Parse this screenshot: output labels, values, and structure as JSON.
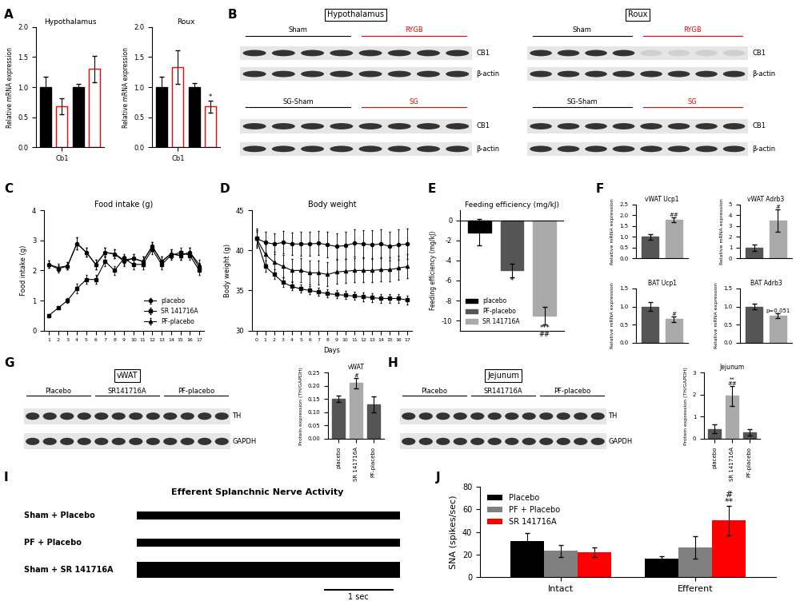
{
  "panel_labels": [
    "A",
    "B",
    "C",
    "D",
    "E",
    "F",
    "G",
    "H",
    "I",
    "J"
  ],
  "chart_data": [
    {
      "type": "bar",
      "title": "Hypothalamus",
      "ylabel": "Relative mRNA expression",
      "categories": [
        null,
        "Cb1",
        null,
        null
      ],
      "values": [
        1.0,
        0.68,
        1.0,
        1.3
      ],
      "errors": [
        0.17,
        0.13,
        0.06,
        0.22
      ],
      "colors": [
        "#000000",
        "#ff0000",
        "#000000",
        "#ff0000"
      ],
      "annotations": [
        null,
        null,
        null,
        null
      ],
      "ylim": [
        0,
        2
      ],
      "yticks": [
        {
          "value": 0,
          "label": "0.0"
        },
        {
          "value": 0.5,
          "label": "0.5"
        },
        {
          "value": 1,
          "label": "1.0"
        },
        {
          "value": 1.5,
          "label": "1.5"
        },
        {
          "value": 2,
          "label": "2.0"
        }
      ]
    },
    {
      "type": "bar",
      "title": "Roux",
      "ylabel": "Relative mRNA expression",
      "categories": [
        null,
        "Cb1",
        null,
        null
      ],
      "values": [
        1.0,
        1.33,
        1.0,
        0.68
      ],
      "errors": [
        0.17,
        0.28,
        0.07,
        0.1
      ],
      "colors": [
        "#000000",
        "#ff0000",
        "#000000",
        "#ff0000"
      ],
      "annotations": [
        null,
        null,
        null,
        "*"
      ],
      "ylim": [
        0,
        2
      ],
      "yticks": [
        {
          "value": 0,
          "label": "0.0"
        },
        {
          "value": 0.5,
          "label": "0.5"
        },
        {
          "value": 1,
          "label": "1.0"
        },
        {
          "value": 1.5,
          "label": "1.5"
        },
        {
          "value": 2,
          "label": "2.0"
        }
      ]
    },
    {
      "type": "line",
      "title": "Food intake (g)",
      "ylabel": "Food intake (g)",
      "x": [
        1,
        2,
        3,
        4,
        5,
        6,
        7,
        8,
        9,
        10,
        11,
        12,
        13,
        14,
        15,
        16,
        17
      ],
      "series": [
        {
          "name": "placebo",
          "color": "#000000",
          "marker": "circle",
          "values": [
            2.2,
            2.05,
            2.15,
            2.9,
            2.6,
            2.2,
            2.6,
            2.55,
            2.3,
            2.4,
            2.3,
            2.8,
            2.3,
            2.55,
            2.5,
            2.6,
            2.1
          ],
          "errors": [
            0.12,
            0.12,
            0.12,
            0.2,
            0.15,
            0.15,
            0.15,
            0.15,
            0.15,
            0.15,
            0.15,
            0.15,
            0.15,
            0.15,
            0.15,
            0.15,
            0.15
          ]
        },
        {
          "name": "SR 141716A",
          "color": "#000000",
          "marker": "square",
          "values": [
            0.5,
            0.75,
            1.0,
            1.4,
            1.7,
            1.7,
            2.3,
            2.0,
            2.4,
            2.2,
            2.2,
            2.7,
            2.2,
            2.5,
            2.6,
            2.5,
            2.0
          ],
          "errors": [
            0.05,
            0.05,
            0.08,
            0.15,
            0.15,
            0.15,
            0.15,
            0.15,
            0.15,
            0.15,
            0.15,
            0.15,
            0.15,
            0.15,
            0.15,
            0.15,
            0.15
          ]
        },
        {
          "name": "PF-placebo",
          "color": "#000000",
          "marker": "triangle",
          "values": [
            2.2,
            2.1,
            2.15,
            2.9,
            2.6,
            2.2,
            2.6,
            2.55,
            2.35,
            2.4,
            2.3,
            2.8,
            2.3,
            2.55,
            2.5,
            2.6,
            2.2
          ],
          "errors": [
            0.12,
            0.12,
            0.12,
            0.2,
            0.15,
            0.15,
            0.15,
            0.15,
            0.15,
            0.15,
            0.15,
            0.15,
            0.15,
            0.15,
            0.15,
            0.15,
            0.15
          ]
        }
      ],
      "xlim": [
        0.5,
        17.5
      ],
      "xticks": [
        1,
        2,
        3,
        4,
        5,
        6,
        7,
        8,
        9,
        10,
        11,
        12,
        13,
        14,
        15,
        16,
        17
      ],
      "ylim": [
        0,
        4
      ],
      "yticks": [
        0,
        1,
        2,
        3,
        4
      ],
      "legend": "lower right"
    },
    {
      "type": "line",
      "title": "Body weight",
      "ylabel": "Body weight (g)",
      "xlabel": "Days",
      "x": [
        0,
        1,
        2,
        3,
        4,
        5,
        6,
        7,
        8,
        9,
        10,
        11,
        12,
        13,
        14,
        15,
        16,
        17
      ],
      "series": [
        {
          "name": "placebo",
          "color": "#000000",
          "marker": "circle",
          "values": [
            41.5,
            41,
            40.8,
            41,
            40.8,
            40.8,
            40.8,
            40.9,
            40.7,
            40.5,
            40.6,
            40.9,
            40.8,
            40.7,
            40.8,
            40.5,
            40.7,
            40.8
          ],
          "errors": [
            1.2,
            1.3,
            1.3,
            1.4,
            1.4,
            1.5,
            1.5,
            1.5,
            1.6,
            1.6,
            1.7,
            1.7,
            1.7,
            1.8,
            1.8,
            1.8,
            1.9,
            1.9
          ]
        },
        {
          "name": "PF-placebo",
          "color": "#000000",
          "marker": "triangle",
          "values": [
            41.5,
            39.5,
            38.5,
            38,
            37.5,
            37.5,
            37.2,
            37.2,
            37,
            37.3,
            37.4,
            37.5,
            37.5,
            37.5,
            37.6,
            37.6,
            37.8,
            38
          ],
          "errors": [
            1.0,
            1.2,
            1.3,
            1.4,
            1.4,
            1.5,
            1.5,
            1.5,
            1.5,
            1.5,
            1.5,
            1.5,
            1.5,
            1.5,
            1.5,
            1.5,
            1.5,
            1.5
          ]
        },
        {
          "name": "SR 141716A",
          "color": "#000000",
          "marker": "square",
          "values": [
            41.5,
            38,
            37,
            36,
            35.5,
            35.2,
            35,
            34.8,
            34.6,
            34.5,
            34.4,
            34.3,
            34.2,
            34.1,
            34,
            34,
            34,
            33.8
          ],
          "errors": [
            0.8,
            0.7,
            0.6,
            0.6,
            0.5,
            0.5,
            0.5,
            0.5,
            0.5,
            0.5,
            0.5,
            0.5,
            0.5,
            0.5,
            0.5,
            0.5,
            0.5,
            0.5
          ]
        }
      ],
      "xlim": [
        -0.5,
        17.5
      ],
      "xticks": [
        0,
        1,
        2,
        3,
        4,
        5,
        6,
        7,
        8,
        9,
        10,
        11,
        12,
        13,
        14,
        15,
        16,
        17
      ],
      "ylim": [
        30,
        45
      ],
      "yticks": [
        30,
        35,
        40,
        45
      ]
    },
    {
      "type": "bar",
      "title": "Feeding efficiency (mg/kJ)",
      "ylabel": "Feeding efficiency (mg/kJ)",
      "categories": [
        "placebo",
        "PF-placebo",
        "SR 141716A"
      ],
      "values": [
        -1.2,
        -5,
        -9.5
      ],
      "errors": [
        1.3,
        0.7,
        0.9
      ],
      "colors": [
        "#000000",
        "#555555",
        "#aaaaaa"
      ],
      "annotations": [
        null,
        "*",
        "***\n##"
      ],
      "ylim": [
        -11,
        1
      ],
      "yticks": [
        -10,
        -8,
        -6,
        -4,
        -2,
        0
      ],
      "legend": "lower left",
      "tick_labels": "y"
    },
    {
      "type": "bar",
      "title": "vWAT Ucp1",
      "ylabel": "Relative mRNA expression",
      "categories": [
        null,
        null
      ],
      "values": [
        1.0,
        1.78
      ],
      "errors": [
        0.12,
        0.12
      ],
      "colors": [
        "#555555",
        "#aaaaaa"
      ],
      "annotations": [
        null,
        "##"
      ],
      "tick_labels": "y",
      "ylim": [
        0,
        2.5
      ],
      "yticks": [
        {
          "value": 0,
          "label": "0.0"
        },
        {
          "value": 0.5,
          "label": "0.5"
        },
        {
          "value": 1,
          "label": "1.0"
        },
        {
          "value": 1.5,
          "label": "1.5"
        },
        {
          "value": 2,
          "label": "2.0"
        },
        {
          "value": 2.5,
          "label": "2.5"
        }
      ]
    },
    {
      "type": "bar",
      "title": "vWAT Adrb3",
      "ylabel": "Relative mRNA expression",
      "categories": [
        null,
        null
      ],
      "values": [
        1.0,
        3.5
      ],
      "errors": [
        0.3,
        1.0
      ],
      "colors": [
        "#555555",
        "#aaaaaa"
      ],
      "annotations": [
        null,
        "#"
      ],
      "tick_labels": "y",
      "ylim": [
        0,
        5
      ],
      "yticks": [
        0,
        1,
        2,
        3,
        4,
        5
      ]
    },
    {
      "type": "bar",
      "title": "BAT Ucp1",
      "ylabel": "Relative mRNA expression",
      "categories": [
        null,
        null
      ],
      "values": [
        1.0,
        0.65
      ],
      "errors": [
        0.12,
        0.08
      ],
      "colors": [
        "#555555",
        "#aaaaaa"
      ],
      "annotations": [
        null,
        "#"
      ],
      "tick_labels": "y",
      "ylim": [
        0,
        1.5
      ],
      "yticks": [
        {
          "value": 0,
          "label": "0.0"
        },
        {
          "value": 0.5,
          "label": "0.5"
        },
        {
          "value": 1,
          "label": "1.0"
        },
        {
          "value": 1.5,
          "label": "1.5"
        }
      ]
    },
    {
      "type": "bar",
      "title": "BAT Adrb3",
      "ylabel": "Relative mRNA expression",
      "categories": [
        null,
        null
      ],
      "values": [
        1.0,
        0.75
      ],
      "errors": [
        0.08,
        0.07
      ],
      "colors": [
        "#555555",
        "#aaaaaa"
      ],
      "annotations": [
        null,
        "p=0.051"
      ],
      "tick_labels": "y",
      "ylim": [
        0,
        1.5
      ],
      "yticks": [
        {
          "value": 0,
          "label": "0.0"
        },
        {
          "value": 0.5,
          "label": "0.5"
        },
        {
          "value": 1,
          "label": "1.0"
        },
        {
          "value": 1.5,
          "label": "1.5"
        }
      ]
    },
    {
      "type": "bar",
      "title": "vWAT",
      "ylabel": "Protein expression (TH/GAPDH)",
      "categories": [
        "placebo",
        "SR 141716A",
        "PF-placebo"
      ],
      "values": [
        0.15,
        0.21,
        0.13
      ],
      "errors": [
        0.012,
        0.02,
        0.03
      ],
      "colors": [
        "#555555",
        "#aaaaaa",
        "#555555"
      ],
      "annotations": [
        null,
        "#",
        null
      ],
      "ylim": [
        0,
        0.25
      ],
      "yticks": [
        {
          "value": 0,
          "label": "0.00"
        },
        {
          "value": 0.05,
          "label": "0.05"
        },
        {
          "value": 0.1,
          "label": "0.10"
        },
        {
          "value": 0.15,
          "label": "0.15"
        },
        {
          "value": 0.2,
          "label": "0.20"
        },
        {
          "value": 0.25,
          "label": "0.25"
        }
      ]
    },
    {
      "type": "bar",
      "title": "Jejunum",
      "ylabel": "Protein expression (TH/GAPDH)",
      "categories": [
        "placebo",
        "SR 141716A",
        "PF-placebo"
      ],
      "values": [
        0.45,
        1.95,
        0.3
      ],
      "errors": [
        0.2,
        0.45,
        0.15
      ],
      "colors": [
        "#555555",
        "#aaaaaa",
        "#555555"
      ],
      "annotations": [
        null,
        "**\n##",
        null
      ],
      "ylim": [
        0,
        3
      ],
      "yticks": [
        0,
        1,
        2,
        3
      ]
    },
    {
      "type": "bar",
      "ylabel": "SNA (spikes/sec)",
      "categories": [
        "Intact",
        "Efferent"
      ],
      "series": [
        {
          "name": "Placebo",
          "color": "#000000",
          "values": [
            32,
            16
          ],
          "errors": [
            7,
            2.5
          ],
          "annotations": [
            null,
            null
          ]
        },
        {
          "name": "PF + Placebo",
          "color": "#808080",
          "values": [
            23,
            26
          ],
          "errors": [
            5,
            10
          ],
          "annotations": [
            null,
            null
          ]
        },
        {
          "name": "SR 141716A",
          "color": "#ff0000",
          "values": [
            22,
            50
          ],
          "errors": [
            4,
            13
          ],
          "annotations": [
            null,
            "#\n**"
          ]
        }
      ],
      "ylim": [
        0,
        80
      ],
      "yticks": [
        0,
        20,
        40,
        60,
        80
      ],
      "legend": "upper left"
    }
  ],
  "blots": [
    {
      "title": "Hypothalamus",
      "groups": [
        "Sham",
        "RYGB"
      ],
      "colors": [
        "#000000",
        "#ff0000"
      ],
      "bands": [
        "CB1",
        "β-actin"
      ]
    },
    {
      "groups": [
        "SG-Sham",
        "SG"
      ],
      "colors": [
        "#000000",
        "#ff0000"
      ],
      "bands": [
        "CB1",
        "β-actin"
      ]
    },
    {
      "title": "Roux",
      "groups": [
        "Sham",
        "RYGB"
      ],
      "colors": [
        "#000000",
        "#ff0000"
      ],
      "bands": [
        "CB1",
        "β-actin"
      ]
    },
    {
      "groups": [
        "SG-Sham",
        "SG"
      ],
      "colors": [
        "#000000",
        "#ff0000"
      ],
      "bands": [
        "CB1",
        "β-actin"
      ]
    },
    {
      "title": "vWAT",
      "groups": [
        "Placebo",
        "SR141716A",
        "PF-placebo"
      ],
      "colors": [
        "#000000",
        "#000000",
        "#000000"
      ],
      "bands": [
        "TH",
        "GAPDH"
      ]
    },
    {
      "title": "Jejunum",
      "groups": [
        "Placebo",
        "SR141716A",
        "PF-placebo"
      ],
      "colors": [
        "#000000",
        "#000000",
        "#000000"
      ],
      "bands": [
        "TH",
        "GAPDH"
      ]
    }
  ],
  "traces": {
    "title": "Efferent Splanchnic Nerve Activity",
    "rows": [
      "Sham + Placebo",
      "PF + Placebo",
      "Sham + SR 141716A"
    ],
    "scale_bar": "1 sec"
  }
}
